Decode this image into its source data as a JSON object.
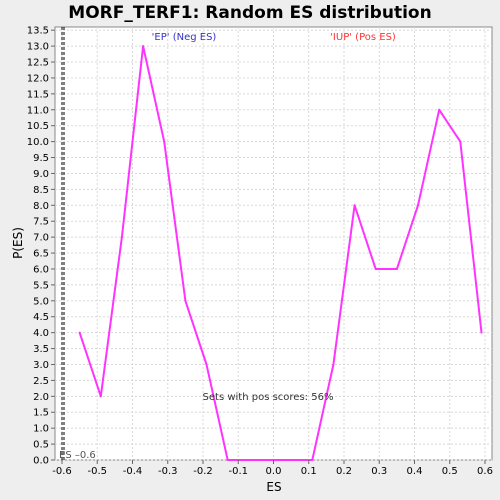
{
  "chart_data": {
    "type": "line",
    "title": "MORF_TERF1: Random ES distribution",
    "xlabel": "ES",
    "ylabel": "P(ES)",
    "xlim": [
      -0.6,
      0.6
    ],
    "ylim": [
      0,
      13.6
    ],
    "x_ticks": [
      "-0.6",
      "-0.5",
      "-0.4",
      "-0.3",
      "-0.2",
      "-0.1",
      "0.0",
      "0.1",
      "0.2",
      "0.3",
      "0.4",
      "0.5",
      "0.6"
    ],
    "x_tick_values": [
      -0.6,
      -0.5,
      -0.4,
      -0.3,
      -0.2,
      -0.1,
      0.0,
      0.1,
      0.2,
      0.3,
      0.4,
      0.5,
      0.6
    ],
    "y_ticks": [
      "0.0",
      "0.5",
      "1.0",
      "1.5",
      "2.0",
      "2.5",
      "3.0",
      "3.5",
      "4.0",
      "4.5",
      "5.0",
      "5.5",
      "6.0",
      "6.5",
      "7.0",
      "7.5",
      "8.0",
      "8.5",
      "9.0",
      "9.5",
      "10.0",
      "10.5",
      "11.0",
      "11.5",
      "12.0",
      "12.5",
      "13.0",
      "13.5"
    ],
    "y_tick_values": [
      0.0,
      0.5,
      1.0,
      1.5,
      2.0,
      2.5,
      3.0,
      3.5,
      4.0,
      4.5,
      5.0,
      5.5,
      6.0,
      6.5,
      7.0,
      7.5,
      8.0,
      8.5,
      9.0,
      9.5,
      10.0,
      10.5,
      11.0,
      11.5,
      12.0,
      12.5,
      13.0,
      13.5
    ],
    "grid": true,
    "series": [
      {
        "color": "#ff33ff",
        "x": [
          -0.55,
          -0.49,
          -0.43,
          -0.37,
          -0.31,
          -0.25,
          -0.19,
          -0.13,
          -0.07,
          -0.01,
          0.05,
          0.11,
          0.17,
          0.23,
          0.29,
          0.35,
          0.41,
          0.47,
          0.53,
          0.59
        ],
        "y": [
          4,
          2,
          7,
          13,
          10,
          5,
          3,
          0,
          0,
          0,
          0,
          0,
          3,
          8,
          6,
          6,
          8,
          11,
          10,
          4
        ]
      }
    ],
    "es_marker": {
      "x": -0.6,
      "label": "ES –0.6"
    },
    "annotations": {
      "neg_label": "'EP' (Neg ES)",
      "pos_label": "'IUP' (Pos ES)",
      "pos_scores": "Sets with pos scores: 56%"
    },
    "colors": {
      "neg": "#3333cc",
      "pos": "#ff3333",
      "line": "#ff33ff",
      "plot_bg": "#ffffff",
      "page_bg": "#eeeeee",
      "grid": "#d8d8d8"
    }
  }
}
